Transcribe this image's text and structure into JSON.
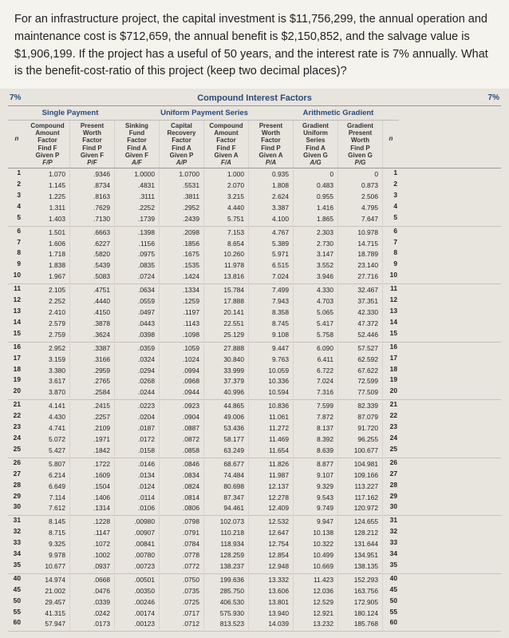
{
  "question": "For an infrastructure project, the capital investment is $11,756,299, the annual operation and maintenance cost is $712,659, the annual benefit is $2,150,852, and the salvage value is $1,906,199. If the project has a useful of 50 years, and the interest rate is 7% annually. What is the benefit-cost-ratio of this project (keep two decimal places)?",
  "table": {
    "title": "Compound Interest Factors",
    "rate_label": "7%",
    "groups": [
      "Single Payment",
      "Uniform Payment Series",
      "Arithmetic Gradient"
    ],
    "columns": [
      {
        "l1": "Compound",
        "l2": "Amount",
        "l3": "Factor",
        "l4": "Find F",
        "l5": "Given P",
        "l6": "F/P"
      },
      {
        "l1": "Present",
        "l2": "Worth",
        "l3": "Factor",
        "l4": "Find P",
        "l5": "Given F",
        "l6": "P/F"
      },
      {
        "l1": "Sinking",
        "l2": "Fund",
        "l3": "Factor",
        "l4": "Find A",
        "l5": "Given F",
        "l6": "A/F"
      },
      {
        "l1": "Capital",
        "l2": "Recovery",
        "l3": "Factor",
        "l4": "Find A",
        "l5": "Given P",
        "l6": "A/P"
      },
      {
        "l1": "Compound",
        "l2": "Amount",
        "l3": "Factor",
        "l4": "Find F",
        "l5": "Given A",
        "l6": "F/A"
      },
      {
        "l1": "Present",
        "l2": "Worth",
        "l3": "Factor",
        "l4": "Find P",
        "l5": "Given A",
        "l6": "P/A"
      },
      {
        "l1": "Gradient",
        "l2": "Uniform",
        "l3": "Series",
        "l4": "Find A",
        "l5": "Given G",
        "l6": "A/G"
      },
      {
        "l1": "Gradient",
        "l2": "Present",
        "l3": "Worth",
        "l4": "Find P",
        "l5": "Given G",
        "l6": "P/G"
      }
    ],
    "n_label": "n",
    "blocks": [
      [
        {
          "n": "1",
          "v": [
            "1.070",
            ".9346",
            "1.0000",
            "1.0700",
            "1.000",
            "0.935",
            "0",
            "0"
          ]
        },
        {
          "n": "2",
          "v": [
            "1.145",
            ".8734",
            ".4831",
            ".5531",
            "2.070",
            "1.808",
            "0.483",
            "0.873"
          ]
        },
        {
          "n": "3",
          "v": [
            "1.225",
            ".8163",
            ".3111",
            ".3811",
            "3.215",
            "2.624",
            "0.955",
            "2.506"
          ]
        },
        {
          "n": "4",
          "v": [
            "1.311",
            ".7629",
            ".2252",
            ".2952",
            "4.440",
            "3.387",
            "1.416",
            "4.795"
          ]
        },
        {
          "n": "5",
          "v": [
            "1.403",
            ".7130",
            ".1739",
            ".2439",
            "5.751",
            "4.100",
            "1.865",
            "7.647"
          ]
        }
      ],
      [
        {
          "n": "6",
          "v": [
            "1.501",
            ".6663",
            ".1398",
            ".2098",
            "7.153",
            "4.767",
            "2.303",
            "10.978"
          ]
        },
        {
          "n": "7",
          "v": [
            "1.606",
            ".6227",
            ".1156",
            ".1856",
            "8.654",
            "5.389",
            "2.730",
            "14.715"
          ]
        },
        {
          "n": "8",
          "v": [
            "1.718",
            ".5820",
            ".0975",
            ".1675",
            "10.260",
            "5.971",
            "3.147",
            "18.789"
          ]
        },
        {
          "n": "9",
          "v": [
            "1.838",
            ".5439",
            ".0835",
            ".1535",
            "11.978",
            "6.515",
            "3.552",
            "23.140"
          ]
        },
        {
          "n": "10",
          "v": [
            "1.967",
            ".5083",
            ".0724",
            ".1424",
            "13.816",
            "7.024",
            "3.946",
            "27.716"
          ]
        }
      ],
      [
        {
          "n": "11",
          "v": [
            "2.105",
            ".4751",
            ".0634",
            ".1334",
            "15.784",
            "7.499",
            "4.330",
            "32.467"
          ]
        },
        {
          "n": "12",
          "v": [
            "2.252",
            ".4440",
            ".0559",
            ".1259",
            "17.888",
            "7.943",
            "4.703",
            "37.351"
          ]
        },
        {
          "n": "13",
          "v": [
            "2.410",
            ".4150",
            ".0497",
            ".1197",
            "20.141",
            "8.358",
            "5.065",
            "42.330"
          ]
        },
        {
          "n": "14",
          "v": [
            "2.579",
            ".3878",
            ".0443",
            ".1143",
            "22.551",
            "8.745",
            "5.417",
            "47.372"
          ]
        },
        {
          "n": "15",
          "v": [
            "2.759",
            ".3624",
            ".0398",
            ".1098",
            "25.129",
            "9.108",
            "5.758",
            "52.446"
          ]
        }
      ],
      [
        {
          "n": "16",
          "v": [
            "2.952",
            ".3387",
            ".0359",
            ".1059",
            "27.888",
            "9.447",
            "6.090",
            "57.527"
          ]
        },
        {
          "n": "17",
          "v": [
            "3.159",
            ".3166",
            ".0324",
            ".1024",
            "30.840",
            "9.763",
            "6.411",
            "62.592"
          ]
        },
        {
          "n": "18",
          "v": [
            "3.380",
            ".2959",
            ".0294",
            ".0994",
            "33.999",
            "10.059",
            "6.722",
            "67.622"
          ]
        },
        {
          "n": "19",
          "v": [
            "3.617",
            ".2765",
            ".0268",
            ".0968",
            "37.379",
            "10.336",
            "7.024",
            "72.599"
          ]
        },
        {
          "n": "20",
          "v": [
            "3.870",
            ".2584",
            ".0244",
            ".0944",
            "40.996",
            "10.594",
            "7.316",
            "77.509"
          ]
        }
      ],
      [
        {
          "n": "21",
          "v": [
            "4.141",
            ".2415",
            ".0223",
            ".0923",
            "44.865",
            "10.836",
            "7.599",
            "82.339"
          ]
        },
        {
          "n": "22",
          "v": [
            "4.430",
            ".2257",
            ".0204",
            ".0904",
            "49.006",
            "11.061",
            "7.872",
            "87.079"
          ]
        },
        {
          "n": "23",
          "v": [
            "4.741",
            ".2109",
            ".0187",
            ".0887",
            "53.436",
            "11.272",
            "8.137",
            "91.720"
          ]
        },
        {
          "n": "24",
          "v": [
            "5.072",
            ".1971",
            ".0172",
            ".0872",
            "58.177",
            "11.469",
            "8.392",
            "96.255"
          ]
        },
        {
          "n": "25",
          "v": [
            "5.427",
            ".1842",
            ".0158",
            ".0858",
            "63.249",
            "11.654",
            "8.639",
            "100.677"
          ]
        }
      ],
      [
        {
          "n": "26",
          "v": [
            "5.807",
            ".1722",
            ".0146",
            ".0846",
            "68.677",
            "11.826",
            "8.877",
            "104.981"
          ]
        },
        {
          "n": "27",
          "v": [
            "6.214",
            ".1609",
            ".0134",
            ".0834",
            "74.484",
            "11.987",
            "9.107",
            "109.166"
          ]
        },
        {
          "n": "28",
          "v": [
            "6.649",
            ".1504",
            ".0124",
            ".0824",
            "80.698",
            "12.137",
            "9.329",
            "113.227"
          ]
        },
        {
          "n": "29",
          "v": [
            "7.114",
            ".1406",
            ".0114",
            ".0814",
            "87.347",
            "12.278",
            "9.543",
            "117.162"
          ]
        },
        {
          "n": "30",
          "v": [
            "7.612",
            ".1314",
            ".0106",
            ".0806",
            "94.461",
            "12.409",
            "9.749",
            "120.972"
          ]
        }
      ],
      [
        {
          "n": "31",
          "v": [
            "8.145",
            ".1228",
            ".00980",
            ".0798",
            "102.073",
            "12.532",
            "9.947",
            "124.655"
          ]
        },
        {
          "n": "32",
          "v": [
            "8.715",
            ".1147",
            ".00907",
            ".0791",
            "110.218",
            "12.647",
            "10.138",
            "128.212"
          ]
        },
        {
          "n": "33",
          "v": [
            "9.325",
            ".1072",
            ".00841",
            ".0784",
            "118.934",
            "12.754",
            "10.322",
            "131.644"
          ]
        },
        {
          "n": "34",
          "v": [
            "9.978",
            ".1002",
            ".00780",
            ".0778",
            "128.259",
            "12.854",
            "10.499",
            "134.951"
          ]
        },
        {
          "n": "35",
          "v": [
            "10.677",
            ".0937",
            ".00723",
            ".0772",
            "138.237",
            "12.948",
            "10.669",
            "138.135"
          ]
        }
      ],
      [
        {
          "n": "40",
          "v": [
            "14.974",
            ".0668",
            ".00501",
            ".0750",
            "199.636",
            "13.332",
            "11.423",
            "152.293"
          ]
        },
        {
          "n": "45",
          "v": [
            "21.002",
            ".0476",
            ".00350",
            ".0735",
            "285.750",
            "13.606",
            "12.036",
            "163.756"
          ]
        },
        {
          "n": "50",
          "v": [
            "29.457",
            ".0339",
            ".00246",
            ".0725",
            "406.530",
            "13.801",
            "12.529",
            "172.905"
          ]
        },
        {
          "n": "55",
          "v": [
            "41.315",
            ".0242",
            ".00174",
            ".0717",
            "575.930",
            "13.940",
            "12.921",
            "180.124"
          ]
        },
        {
          "n": "60",
          "v": [
            "57.947",
            ".0173",
            ".00123",
            ".0712",
            "813.523",
            "14.039",
            "13.232",
            "185.768"
          ]
        }
      ]
    ]
  },
  "styling": {
    "question_bg": "#f5f3ee",
    "question_color": "#222",
    "header_color": "#2a4a7a",
    "border_color": "#999",
    "text_color": "#222"
  }
}
